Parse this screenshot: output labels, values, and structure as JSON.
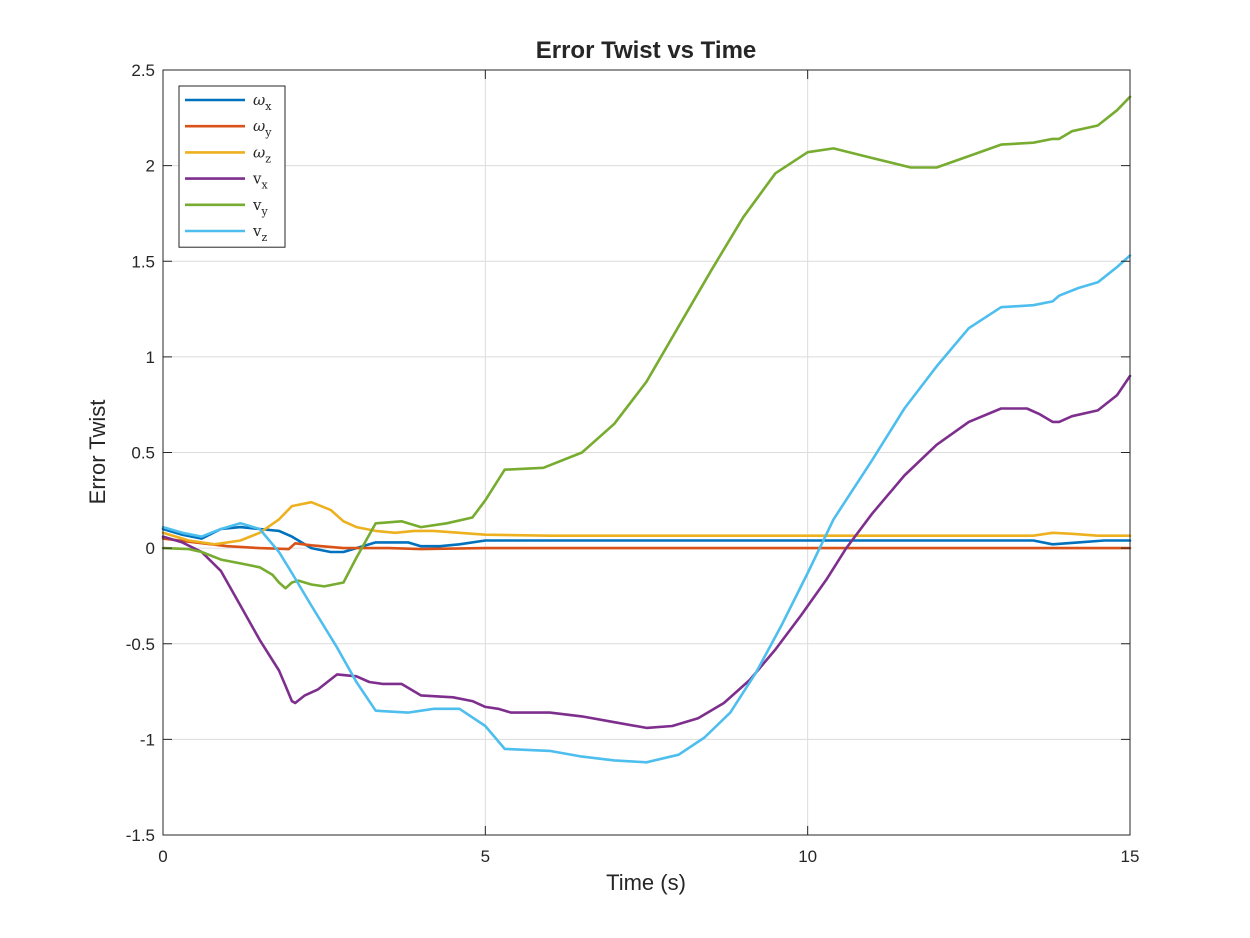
{
  "chart_data": {
    "type": "line",
    "title": "Error Twist vs Time",
    "xlabel": "Time (s)",
    "ylabel": "Error Twist",
    "xlim": [
      0,
      15
    ],
    "ylim": [
      -1.5,
      2.5
    ],
    "x_ticks": [
      0,
      5,
      10,
      15
    ],
    "x_tick_labels": [
      "0",
      "5",
      "10",
      "15"
    ],
    "y_ticks": [
      -1.5,
      -1,
      -0.5,
      0,
      0.5,
      1,
      1.5,
      2,
      2.5
    ],
    "y_tick_labels": [
      "-1.5",
      "-1",
      "-0.5",
      "0",
      "0.5",
      "1",
      "1.5",
      "2",
      "2.5"
    ],
    "grid": true,
    "legend_position": "top-left",
    "series": [
      {
        "name": "ωx",
        "base": "ω",
        "sub": "x",
        "color": "#0072BD",
        "points": [
          [
            0,
            0.1
          ],
          [
            0.3,
            0.07
          ],
          [
            0.6,
            0.05
          ],
          [
            0.9,
            0.1
          ],
          [
            1.2,
            0.11
          ],
          [
            1.5,
            0.1
          ],
          [
            1.8,
            0.09
          ],
          [
            2.0,
            0.06
          ],
          [
            2.3,
            0.0
          ],
          [
            2.6,
            -0.02
          ],
          [
            2.8,
            -0.02
          ],
          [
            3.0,
            0.0
          ],
          [
            3.3,
            0.03
          ],
          [
            3.6,
            0.03
          ],
          [
            3.8,
            0.03
          ],
          [
            4.0,
            0.01
          ],
          [
            4.3,
            0.01
          ],
          [
            4.6,
            0.02
          ],
          [
            5.0,
            0.04
          ],
          [
            6,
            0.04
          ],
          [
            8,
            0.04
          ],
          [
            10,
            0.04
          ],
          [
            12,
            0.04
          ],
          [
            13.5,
            0.04
          ],
          [
            13.8,
            0.02
          ],
          [
            14.2,
            0.03
          ],
          [
            14.6,
            0.04
          ],
          [
            15,
            0.04
          ]
        ]
      },
      {
        "name": "ωy",
        "base": "ω",
        "sub": "y",
        "color": "#D95319",
        "points": [
          [
            0,
            0.05
          ],
          [
            0.5,
            0.03
          ],
          [
            1.0,
            0.01
          ],
          [
            1.5,
            0.0
          ],
          [
            1.95,
            -0.005
          ],
          [
            2.05,
            0.025
          ],
          [
            2.3,
            0.015
          ],
          [
            2.8,
            0.0
          ],
          [
            3.5,
            0.0
          ],
          [
            4.0,
            -0.005
          ],
          [
            5,
            0.0
          ],
          [
            8,
            0.0
          ],
          [
            11,
            0.0
          ],
          [
            15,
            0.0
          ]
        ]
      },
      {
        "name": "ωz",
        "base": "ω",
        "sub": "z",
        "color": "#EDB120",
        "points": [
          [
            0,
            0.08
          ],
          [
            0.4,
            0.04
          ],
          [
            0.8,
            0.02
          ],
          [
            1.2,
            0.04
          ],
          [
            1.5,
            0.08
          ],
          [
            1.8,
            0.15
          ],
          [
            2.0,
            0.22
          ],
          [
            2.3,
            0.24
          ],
          [
            2.6,
            0.2
          ],
          [
            2.8,
            0.14
          ],
          [
            3.0,
            0.11
          ],
          [
            3.3,
            0.09
          ],
          [
            3.6,
            0.08
          ],
          [
            3.9,
            0.09
          ],
          [
            4.2,
            0.09
          ],
          [
            4.6,
            0.08
          ],
          [
            5.0,
            0.07
          ],
          [
            6,
            0.065
          ],
          [
            8,
            0.065
          ],
          [
            10,
            0.065
          ],
          [
            12,
            0.065
          ],
          [
            13.5,
            0.065
          ],
          [
            13.8,
            0.08
          ],
          [
            14.1,
            0.075
          ],
          [
            14.5,
            0.065
          ],
          [
            15,
            0.065
          ]
        ]
      },
      {
        "name": "vx",
        "base": "v",
        "sub": "x",
        "color": "#7E2F8E",
        "points": [
          [
            0,
            0.06
          ],
          [
            0.3,
            0.03
          ],
          [
            0.6,
            -0.02
          ],
          [
            0.9,
            -0.12
          ],
          [
            1.2,
            -0.3
          ],
          [
            1.5,
            -0.48
          ],
          [
            1.8,
            -0.64
          ],
          [
            1.9,
            -0.72
          ],
          [
            2.0,
            -0.8
          ],
          [
            2.05,
            -0.81
          ],
          [
            2.2,
            -0.77
          ],
          [
            2.4,
            -0.74
          ],
          [
            2.7,
            -0.66
          ],
          [
            3.0,
            -0.67
          ],
          [
            3.2,
            -0.7
          ],
          [
            3.4,
            -0.71
          ],
          [
            3.7,
            -0.71
          ],
          [
            4.0,
            -0.77
          ],
          [
            4.5,
            -0.78
          ],
          [
            4.8,
            -0.8
          ],
          [
            5.0,
            -0.83
          ],
          [
            5.2,
            -0.84
          ],
          [
            5.4,
            -0.86
          ],
          [
            6.0,
            -0.86
          ],
          [
            6.5,
            -0.88
          ],
          [
            7.0,
            -0.91
          ],
          [
            7.5,
            -0.94
          ],
          [
            7.9,
            -0.93
          ],
          [
            8.3,
            -0.89
          ],
          [
            8.7,
            -0.81
          ],
          [
            9.1,
            -0.69
          ],
          [
            9.5,
            -0.53
          ],
          [
            9.9,
            -0.35
          ],
          [
            10.3,
            -0.16
          ],
          [
            10.6,
            0.0
          ],
          [
            11.0,
            0.18
          ],
          [
            11.5,
            0.38
          ],
          [
            12.0,
            0.54
          ],
          [
            12.5,
            0.66
          ],
          [
            13.0,
            0.73
          ],
          [
            13.4,
            0.73
          ],
          [
            13.6,
            0.7
          ],
          [
            13.8,
            0.66
          ],
          [
            13.9,
            0.66
          ],
          [
            14.1,
            0.69
          ],
          [
            14.5,
            0.72
          ],
          [
            14.8,
            0.8
          ],
          [
            15,
            0.9
          ]
        ]
      },
      {
        "name": "vy",
        "base": "v",
        "sub": "y",
        "color": "#77AC30",
        "points": [
          [
            0,
            0.0
          ],
          [
            0.4,
            -0.005
          ],
          [
            0.6,
            -0.02
          ],
          [
            0.9,
            -0.06
          ],
          [
            1.2,
            -0.08
          ],
          [
            1.5,
            -0.1
          ],
          [
            1.7,
            -0.14
          ],
          [
            1.8,
            -0.18
          ],
          [
            1.9,
            -0.21
          ],
          [
            2.0,
            -0.18
          ],
          [
            2.1,
            -0.17
          ],
          [
            2.3,
            -0.19
          ],
          [
            2.5,
            -0.2
          ],
          [
            2.8,
            -0.18
          ],
          [
            3.0,
            -0.05
          ],
          [
            3.3,
            0.13
          ],
          [
            3.7,
            0.14
          ],
          [
            4.0,
            0.11
          ],
          [
            4.4,
            0.13
          ],
          [
            4.8,
            0.16
          ],
          [
            5.0,
            0.25
          ],
          [
            5.3,
            0.41
          ],
          [
            5.9,
            0.42
          ],
          [
            6.5,
            0.5
          ],
          [
            7.0,
            0.65
          ],
          [
            7.5,
            0.87
          ],
          [
            8.0,
            1.16
          ],
          [
            8.5,
            1.45
          ],
          [
            9.0,
            1.73
          ],
          [
            9.5,
            1.96
          ],
          [
            10.0,
            2.07
          ],
          [
            10.4,
            2.09
          ],
          [
            11.0,
            2.04
          ],
          [
            11.6,
            1.99
          ],
          [
            12.0,
            1.99
          ],
          [
            12.5,
            2.05
          ],
          [
            13.0,
            2.11
          ],
          [
            13.5,
            2.12
          ],
          [
            13.8,
            2.14
          ],
          [
            13.9,
            2.14
          ],
          [
            14.1,
            2.18
          ],
          [
            14.5,
            2.21
          ],
          [
            14.8,
            2.29
          ],
          [
            15,
            2.36
          ]
        ]
      },
      {
        "name": "vz",
        "base": "v",
        "sub": "z",
        "color": "#4DBEEE",
        "points": [
          [
            0,
            0.11
          ],
          [
            0.3,
            0.08
          ],
          [
            0.6,
            0.06
          ],
          [
            0.9,
            0.1
          ],
          [
            1.2,
            0.13
          ],
          [
            1.5,
            0.1
          ],
          [
            1.8,
            -0.02
          ],
          [
            2.0,
            -0.13
          ],
          [
            2.3,
            -0.3
          ],
          [
            2.7,
            -0.52
          ],
          [
            3.0,
            -0.7
          ],
          [
            3.3,
            -0.85
          ],
          [
            3.8,
            -0.86
          ],
          [
            4.2,
            -0.84
          ],
          [
            4.6,
            -0.84
          ],
          [
            5.0,
            -0.93
          ],
          [
            5.3,
            -1.05
          ],
          [
            6.0,
            -1.06
          ],
          [
            6.5,
            -1.09
          ],
          [
            7.0,
            -1.11
          ],
          [
            7.5,
            -1.12
          ],
          [
            8.0,
            -1.08
          ],
          [
            8.4,
            -0.99
          ],
          [
            8.8,
            -0.86
          ],
          [
            9.2,
            -0.65
          ],
          [
            9.6,
            -0.4
          ],
          [
            10.0,
            -0.13
          ],
          [
            10.4,
            0.15
          ],
          [
            11.0,
            0.46
          ],
          [
            11.5,
            0.73
          ],
          [
            12.0,
            0.95
          ],
          [
            12.5,
            1.15
          ],
          [
            13.0,
            1.26
          ],
          [
            13.5,
            1.27
          ],
          [
            13.8,
            1.29
          ],
          [
            13.9,
            1.32
          ],
          [
            14.2,
            1.36
          ],
          [
            14.5,
            1.39
          ],
          [
            14.8,
            1.47
          ],
          [
            15,
            1.53
          ]
        ]
      }
    ]
  }
}
